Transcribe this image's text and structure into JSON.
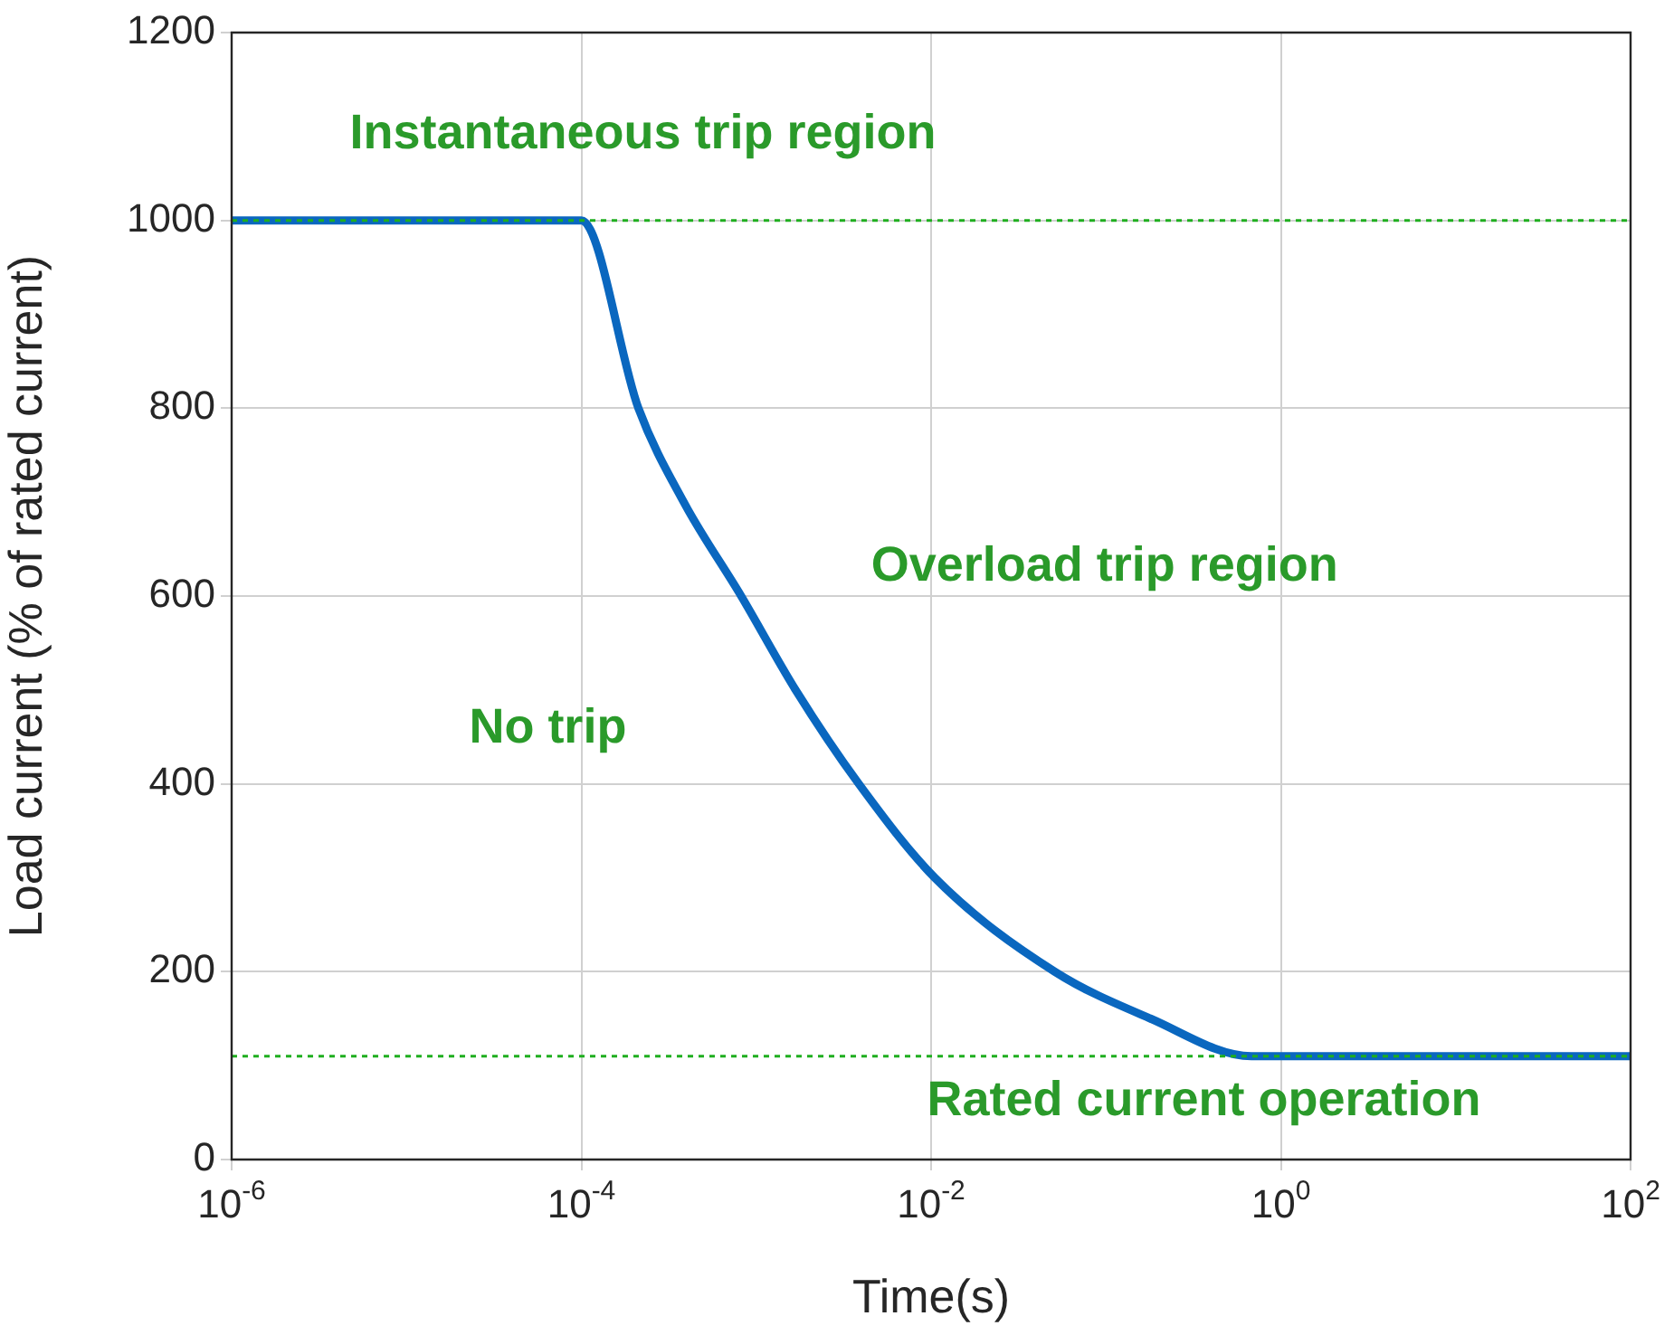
{
  "chart_data": {
    "type": "line",
    "xlabel": "Time(s)",
    "ylabel": "Load current (% of rated current)",
    "series": [
      {
        "color": "#0a67bf",
        "x": [
          1e-06,
          0.0001,
          0.000212,
          0.000385,
          0.00082,
          0.00168,
          0.00386,
          0.0105,
          0.051,
          0.18,
          0.68,
          100
        ],
        "values": [
          1000,
          1000,
          800,
          700,
          600,
          500,
          400,
          300,
          200,
          150,
          110,
          110
        ]
      }
    ],
    "xlim": [
      1e-06,
      100
    ],
    "ylim": [
      0,
      1200
    ],
    "log": "x",
    "xticks": [
      {
        "value": 1e-06,
        "label": "10$^{-6}$"
      },
      {
        "value": 0.0001,
        "label": "10$^{-4}$"
      },
      {
        "value": 0.01,
        "label": "10$^{-2}$"
      },
      {
        "value": 1,
        "label": "10$^{0}$"
      },
      {
        "value": 100,
        "label": "10$^{2}$"
      }
    ],
    "yticks": [
      0,
      200,
      400,
      600,
      800,
      1000,
      1200
    ],
    "grid": true,
    "marker": "none",
    "line_style": "solid",
    "ref_lines": [
      {
        "axis": "y",
        "value": 1000,
        "color": "#1fae1f",
        "line_style": "dotted"
      },
      {
        "axis": "y",
        "value": 110,
        "color": "#1fae1f",
        "line_style": "dotted"
      }
    ],
    "annotations": [
      "Instantaneous trip region",
      "Overload trip region",
      "No trip",
      "Rated current operation"
    ]
  }
}
